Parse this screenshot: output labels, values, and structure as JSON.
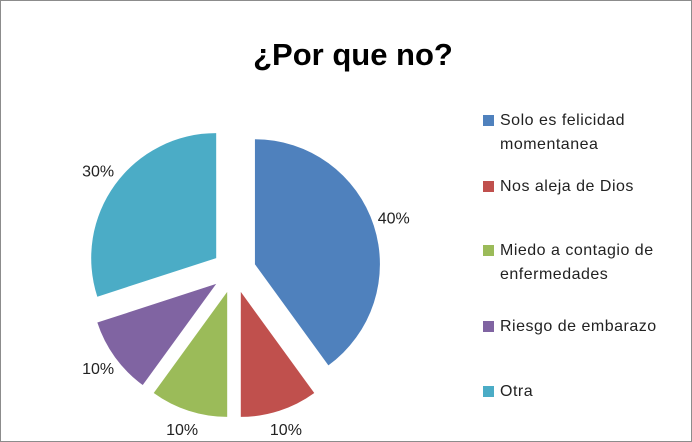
{
  "chart_data": {
    "type": "pie",
    "title": "¿Por que no?",
    "categories": [
      "Solo es felicidad momentanea",
      "Nos aleja de Dios",
      "Miedo a contagio de enfermedades",
      "Riesgo de embarazo",
      "Otra"
    ],
    "values": [
      40,
      10,
      10,
      10,
      30
    ],
    "value_labels": [
      "40%",
      "10%",
      "10%",
      "10%",
      "30%"
    ],
    "colors": [
      "#4f81bd",
      "#c0504d",
      "#9bbb59",
      "#8064a2",
      "#4bacc6"
    ],
    "legend": "right"
  }
}
